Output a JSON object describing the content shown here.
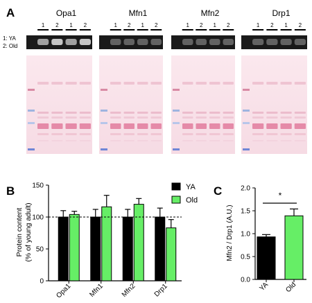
{
  "panel_labels": {
    "a": "A",
    "b": "B",
    "c": "C"
  },
  "colors": {
    "ya": "#000000",
    "old": "#66ee66",
    "ref_line": "#000000"
  },
  "blot": {
    "row_legend": [
      "1: YA",
      "2: Old"
    ],
    "groups": [
      {
        "name": "Opa1",
        "lanes": [
          "1",
          "2",
          "1",
          "2"
        ]
      },
      {
        "name": "Mfn1",
        "lanes": [
          "1",
          "2",
          "1",
          "2"
        ]
      },
      {
        "name": "Mfn2",
        "lanes": [
          "1",
          "2",
          "1",
          "2"
        ]
      },
      {
        "name": "Drp1",
        "lanes": [
          "1",
          "2",
          "1",
          "2"
        ]
      }
    ]
  },
  "chart_data": [
    {
      "type": "bar",
      "panel": "B",
      "ylabel": "Protein content\n(% of young adult)",
      "xlabel": "",
      "ylim": [
        0,
        150
      ],
      "yticks": [
        0,
        50,
        100,
        150
      ],
      "reference_line": 100,
      "categories": [
        "Opa1",
        "Mfn1",
        "Mfn2",
        "Drp1"
      ],
      "legend_position": "top-right",
      "series": [
        {
          "name": "YA",
          "values": [
            100,
            100,
            100,
            100
          ],
          "errors": [
            10,
            12,
            12,
            14
          ],
          "color": "#000000"
        },
        {
          "name": "Old",
          "values": [
            104,
            116,
            120,
            83
          ],
          "errors": [
            5,
            18,
            9,
            13
          ],
          "color": "#66ee66"
        }
      ]
    },
    {
      "type": "bar",
      "panel": "C",
      "ylabel": "Mfn2 / Drp1 (A.U.)",
      "xlabel": "",
      "ylim": [
        0,
        2.0
      ],
      "yticks": [
        0.0,
        0.5,
        1.0,
        1.5,
        2.0
      ],
      "categories": [
        "YA",
        "Old"
      ],
      "values": [
        0.93,
        1.39
      ],
      "errors": [
        0.05,
        0.15
      ],
      "colors": [
        "#000000",
        "#66ee66"
      ],
      "significance": "*"
    }
  ]
}
